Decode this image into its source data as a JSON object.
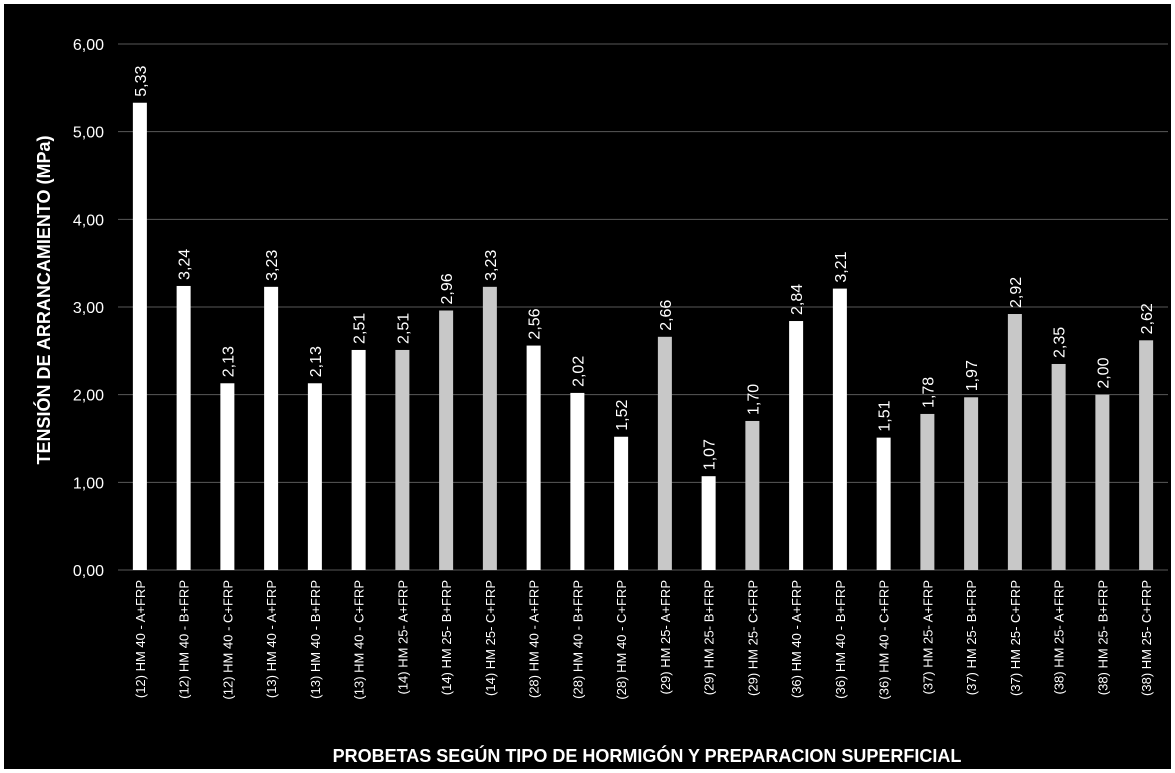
{
  "chart_data": {
    "type": "bar",
    "title": "",
    "xlabel": "PROBETAS SEGÚN TIPO DE HORMIGÓN Y PREPARACION SUPERFICIAL",
    "ylabel": "TENSIÓN DE ARRANCAMIENTO (MPa)",
    "ylim": [
      0,
      6
    ],
    "yticks": [
      "0,00",
      "1,00",
      "2,00",
      "3,00",
      "4,00",
      "5,00",
      "6,00"
    ],
    "grid": true,
    "legend": "none",
    "categories": [
      "(12) HM 40 - A+FRP",
      "(12) HM 40 - B+FRP",
      "(12) HM 40 - C+FRP",
      "(13) HM 40 - A+FRP",
      "(13) HM 40 - B+FRP",
      "(13) HM 40 - C+FRP",
      "(14) HM 25- A+FRP",
      "(14) HM 25- B+FRP",
      "(14) HM 25- C+FRP",
      "(28) HM 40 - A+FRP",
      "(28) HM 40 - B+FRP",
      "(28) HM 40 - C+FRP",
      "(29) HM 25- A+FRP",
      "(29) HM 25- B+FRP",
      "(29) HM 25- C+FRP",
      "(36) HM 40 - A+FRP",
      "(36) HM 40 - B+FRP",
      "(36) HM 40 - C+FRP",
      "(37) HM 25- A+FRP",
      "(37) HM 25- B+FRP",
      "(37) HM 25- C+FRP",
      "(38) HM 25- A+FRP",
      "(38) HM 25- B+FRP",
      "(38) HM 25- C+FRP"
    ],
    "values": [
      5.33,
      3.24,
      2.13,
      3.23,
      2.13,
      2.51,
      2.51,
      2.96,
      3.23,
      2.56,
      2.02,
      1.52,
      2.66,
      1.07,
      1.7,
      2.84,
      3.21,
      1.51,
      1.78,
      1.97,
      2.92,
      2.35,
      2.0,
      2.62
    ],
    "data_labels": [
      "5,33",
      "3,24",
      "2,13",
      "3,23",
      "2,13",
      "2,51",
      "2,51",
      "2,96",
      "3,23",
      "2,56",
      "2,02",
      "1,52",
      "2,66",
      "1,07",
      "1,70",
      "2,84",
      "3,21",
      "1,51",
      "1,78",
      "1,97",
      "2,92",
      "2,35",
      "2,00",
      "2,62"
    ],
    "bar_colors": [
      "#ffffff",
      "#ffffff",
      "#ffffff",
      "#ffffff",
      "#ffffff",
      "#ffffff",
      "#c8c8c8",
      "#c8c8c8",
      "#c8c8c8",
      "#ffffff",
      "#ffffff",
      "#ffffff",
      "#c8c8c8",
      "#ffffff",
      "#c8c8c8",
      "#ffffff",
      "#ffffff",
      "#ffffff",
      "#c8c8c8",
      "#c8c8c8",
      "#c8c8c8",
      "#c8c8c8",
      "#c8c8c8",
      "#c8c8c8"
    ],
    "colors": {
      "background": "#000000",
      "gridline": "#595959",
      "text": "#ffffff"
    }
  }
}
